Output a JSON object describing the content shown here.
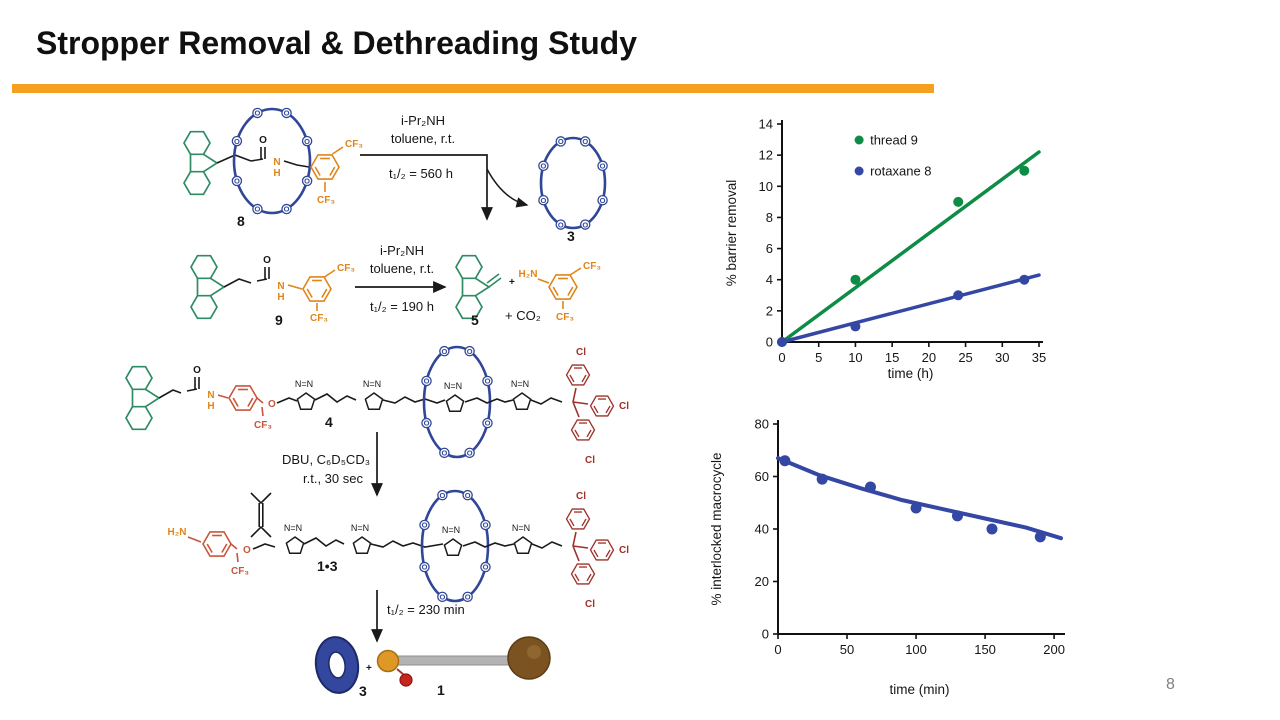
{
  "slide": {
    "title": "Stropper Removal & Dethreading Study",
    "accent_color": "#F5A01E",
    "page_number": "8"
  },
  "scheme": {
    "colors": {
      "green": "#2E8B63",
      "blue": "#2F4699",
      "orange": "#E08519",
      "red": "#C9563B",
      "dark_red": "#9E3028"
    },
    "labels": {
      "triazole": "N=N",
      "cf3": "CF₃",
      "o": "O",
      "n": "N",
      "h": "H",
      "cl": "Cl",
      "plus": "+",
      "h2n": "H₂N",
      "co2": "+ CO₂",
      "atom_o": "O"
    },
    "compounds": {
      "c8": "8",
      "c9": "9",
      "c3": "3",
      "c5": "5",
      "c4": "4",
      "c13": "1•3",
      "c1": "1"
    },
    "rxn1": {
      "reagent1": "i-Pr₂NH",
      "reagent2": "toluene, r.t.",
      "halflife": "t₁/₂ = 560 h"
    },
    "rxn2": {
      "reagent1": "i-Pr₂NH",
      "reagent2": "toluene, r.t.",
      "halflife": "t₁/₂ = 190 h"
    },
    "rxn3": {
      "cond1": "DBU, C₆D₅CD₃",
      "cond2": "r.t., 30 sec"
    },
    "rxn4": {
      "halflife": "t₁/₂ = 230 min"
    }
  },
  "chart_data": [
    {
      "type": "scatter",
      "title": "",
      "xlabel": "time (h)",
      "ylabel": "% barrier removal",
      "xlim": [
        0,
        35
      ],
      "ylim": [
        0,
        14
      ],
      "xticks": [
        0,
        5,
        10,
        15,
        20,
        25,
        30,
        35
      ],
      "yticks": [
        0,
        2,
        4,
        6,
        8,
        10,
        12,
        14
      ],
      "grid": false,
      "legend": true,
      "legend_position": "upper left",
      "series": [
        {
          "name": "thread 9",
          "color": "#0E8C46",
          "points": [
            [
              0,
              0
            ],
            [
              10,
              4
            ],
            [
              24,
              9
            ],
            [
              33,
              11
            ]
          ],
          "line": [
            [
              0,
              0
            ],
            [
              35,
              12.2
            ]
          ]
        },
        {
          "name": "rotaxane 8",
          "color": "#3547A5",
          "points": [
            [
              0,
              0
            ],
            [
              10,
              1
            ],
            [
              24,
              3
            ],
            [
              33,
              4
            ]
          ],
          "line": [
            [
              0,
              0
            ],
            [
              35,
              4.3
            ]
          ]
        }
      ]
    },
    {
      "type": "scatter",
      "title": "",
      "xlabel": "time (min)",
      "ylabel": "% interlocked macrocycle",
      "xlim": [
        0,
        205
      ],
      "ylim": [
        0,
        80
      ],
      "xticks": [
        0,
        50,
        100,
        150,
        200
      ],
      "yticks": [
        0,
        20,
        40,
        60,
        80
      ],
      "grid": false,
      "legend": false,
      "series": [
        {
          "name": "interlocked macrocycle",
          "color": "#3547A5",
          "points": [
            [
              5,
              66
            ],
            [
              32,
              59
            ],
            [
              67,
              56
            ],
            [
              100,
              48
            ],
            [
              130,
              45
            ],
            [
              155,
              40
            ],
            [
              190,
              37
            ]
          ],
          "line": [
            [
              0,
              67
            ],
            [
              30,
              60.5
            ],
            [
              60,
              55.5
            ],
            [
              90,
              51
            ],
            [
              120,
              47.5
            ],
            [
              150,
              44
            ],
            [
              180,
              40.5
            ],
            [
              205,
              36.5
            ]
          ]
        }
      ]
    }
  ]
}
